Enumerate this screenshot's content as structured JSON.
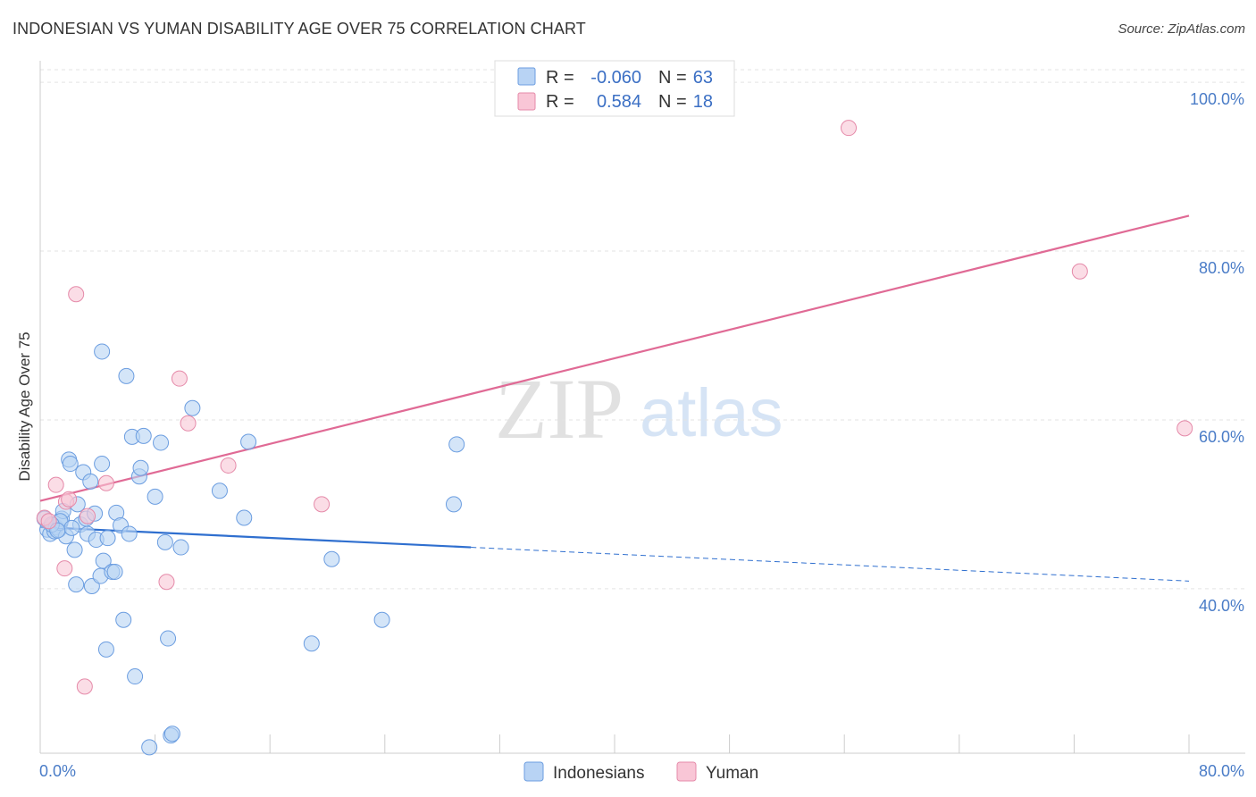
{
  "title": "INDONESIAN VS YUMAN DISABILITY AGE OVER 75 CORRELATION CHART",
  "source": "Source: ZipAtlas.com",
  "watermark": {
    "zip": "ZIP",
    "atlas": "atlas"
  },
  "legend": {
    "r_label": "R =",
    "n_label": "N =",
    "rows": [
      {
        "series": "Indonesians",
        "r": "-0.060",
        "n": "63",
        "fill": "#b8d3f4",
        "stroke": "#6b9de0"
      },
      {
        "series": "Yuman",
        "r": "0.584",
        "n": "18",
        "fill": "#f9c6d6",
        "stroke": "#e58aa9"
      }
    ]
  },
  "bottom_legend": [
    {
      "label": "Indonesians",
      "fill": "#b8d3f4",
      "stroke": "#6b9de0"
    },
    {
      "label": "Yuman",
      "fill": "#f9c6d6",
      "stroke": "#e58aa9"
    }
  ],
  "chart_data": {
    "type": "scatter",
    "title": "INDONESIAN VS YUMAN DISABILITY AGE OVER 75 CORRELATION CHART",
    "xlabel": "",
    "ylabel": "Disability Age Over 75",
    "xlim": [
      0,
      80
    ],
    "ylim": [
      20.5,
      101.5
    ],
    "x_tick_labels": [
      "0.0%",
      "80.0%"
    ],
    "y_ticks": [
      {
        "value": 100,
        "label": "100.0%"
      },
      {
        "value": 80,
        "label": "80.0%"
      },
      {
        "value": 60,
        "label": "60.0%"
      },
      {
        "value": 40,
        "label": "40.0%"
      }
    ],
    "series": [
      {
        "name": "Indonesians",
        "color": "#6b9de0",
        "fill": "#b8d3f4",
        "trend": {
          "x0": 0,
          "y0": 47.3,
          "x1": 30.0,
          "y1": 44.9,
          "dashed_to_x": 80,
          "dashed_to_y": 40.9,
          "color": "#2f6fcf"
        },
        "points": [
          [
            0.3,
            48.3
          ],
          [
            0.5,
            47.0
          ],
          [
            0.7,
            46.5
          ],
          [
            0.9,
            47.5
          ],
          [
            1.0,
            46.8
          ],
          [
            1.1,
            47.3
          ],
          [
            1.3,
            47.0
          ],
          [
            1.4,
            47.8
          ],
          [
            1.5,
            48.3
          ],
          [
            1.6,
            49.2
          ],
          [
            1.8,
            46.2
          ],
          [
            2.0,
            55.3
          ],
          [
            2.1,
            54.8
          ],
          [
            2.4,
            44.6
          ],
          [
            2.5,
            40.5
          ],
          [
            2.6,
            50.0
          ],
          [
            2.8,
            47.6
          ],
          [
            3.0,
            53.8
          ],
          [
            3.2,
            48.3
          ],
          [
            3.3,
            46.5
          ],
          [
            3.5,
            52.7
          ],
          [
            3.6,
            40.3
          ],
          [
            3.8,
            48.9
          ],
          [
            3.9,
            45.8
          ],
          [
            4.2,
            41.5
          ],
          [
            4.3,
            54.8
          ],
          [
            4.4,
            43.3
          ],
          [
            4.6,
            32.8
          ],
          [
            4.7,
            46.0
          ],
          [
            5.0,
            42.0
          ],
          [
            5.2,
            42.0
          ],
          [
            5.3,
            49.0
          ],
          [
            5.6,
            47.5
          ],
          [
            5.8,
            36.3
          ],
          [
            6.0,
            65.2
          ],
          [
            6.2,
            46.5
          ],
          [
            6.4,
            58.0
          ],
          [
            6.6,
            29.6
          ],
          [
            6.9,
            53.3
          ],
          [
            7.0,
            54.3
          ],
          [
            7.2,
            58.1
          ],
          [
            7.6,
            21.2
          ],
          [
            8.0,
            50.9
          ],
          [
            8.4,
            57.3
          ],
          [
            8.7,
            45.5
          ],
          [
            8.9,
            34.1
          ],
          [
            9.1,
            22.6
          ],
          [
            9.2,
            22.8
          ],
          [
            9.8,
            44.9
          ],
          [
            10.6,
            61.4
          ],
          [
            12.5,
            51.6
          ],
          [
            14.2,
            48.4
          ],
          [
            14.5,
            57.4
          ],
          [
            18.9,
            33.5
          ],
          [
            20.3,
            43.5
          ],
          [
            23.8,
            36.3
          ],
          [
            28.8,
            50.0
          ],
          [
            29.0,
            57.1
          ],
          [
            4.3,
            68.1
          ],
          [
            1.4,
            48.0
          ],
          [
            2.2,
            47.2
          ],
          [
            0.8,
            47.6
          ],
          [
            1.2,
            46.9
          ]
        ]
      },
      {
        "name": "Yuman",
        "color": "#e58aa9",
        "fill": "#f9c6d6",
        "trend": {
          "x0": 0,
          "y0": 50.4,
          "x1": 80,
          "y1": 84.2,
          "color": "#e06a95"
        },
        "points": [
          [
            0.3,
            48.4
          ],
          [
            1.1,
            52.3
          ],
          [
            1.7,
            42.4
          ],
          [
            1.8,
            50.3
          ],
          [
            2.5,
            74.9
          ],
          [
            3.1,
            28.4
          ],
          [
            4.6,
            52.5
          ],
          [
            8.8,
            40.8
          ],
          [
            9.7,
            64.9
          ],
          [
            10.3,
            59.6
          ],
          [
            13.1,
            54.6
          ],
          [
            19.6,
            50.0
          ],
          [
            56.3,
            94.6
          ],
          [
            72.4,
            77.6
          ],
          [
            79.7,
            59.0
          ],
          [
            0.6,
            48.0
          ],
          [
            3.3,
            48.6
          ],
          [
            2.0,
            50.6
          ]
        ]
      }
    ]
  }
}
